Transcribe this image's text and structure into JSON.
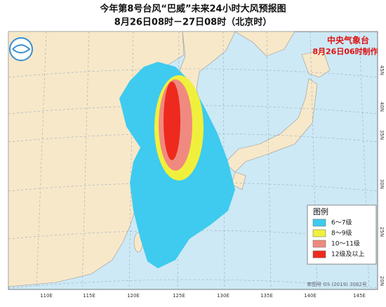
{
  "header": {
    "title": "今年第8号台风“巴威”未来24小时大风预报图",
    "subtitle": "8月26日08时－27日08时（北京时）"
  },
  "issuer": {
    "agency": "中央气象台",
    "issued": "8月26日06时制作"
  },
  "legend": {
    "title": "图例",
    "items": [
      {
        "label": "6～7级",
        "color": "#3ecbef"
      },
      {
        "label": "8～9级",
        "color": "#f0f03c"
      },
      {
        "label": "10～11级",
        "color": "#f08a80"
      },
      {
        "label": "12级及以上",
        "color": "#ee2a1e"
      }
    ]
  },
  "axes": {
    "longitude": [
      "110E",
      "115E",
      "120E",
      "125E",
      "130E",
      "135E",
      "140E",
      "145E"
    ],
    "latitude": [
      "45N",
      "40N",
      "35N",
      "30N",
      "25N",
      "20N"
    ]
  },
  "footer": {
    "approval": "审图号 GS (2019) 3082号"
  }
}
